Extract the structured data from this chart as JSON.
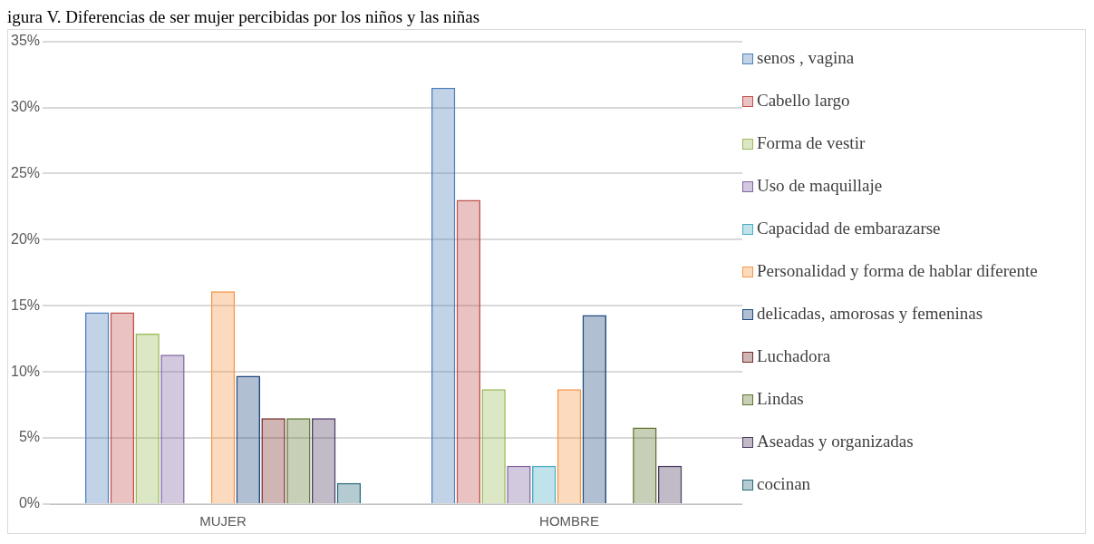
{
  "chart_data": {
    "type": "bar",
    "title": "igura V. Diferencias de ser mujer percibidas por los niños y las niñas",
    "categories": [
      "MUJER",
      "HOMBRE"
    ],
    "series": [
      {
        "name": "senos , vagina",
        "color": "#4f81bd",
        "values": [
          14.5,
          31.5
        ]
      },
      {
        "name": "Cabello largo",
        "color": "#c0504d",
        "values": [
          14.5,
          23
        ]
      },
      {
        "name": "Forma de vestir",
        "color": "#9bbb59",
        "values": [
          12.9,
          8.7
        ]
      },
      {
        "name": "Uso de maquillaje",
        "color": "#8064a2",
        "values": [
          11.3,
          2.9
        ]
      },
      {
        "name": "Capacidad de embarazarse",
        "color": "#4bacc6",
        "values": [
          0,
          2.9
        ]
      },
      {
        "name": "Personalidad y forma de hablar diferente",
        "color": "#f79646",
        "values": [
          16.1,
          8.7
        ]
      },
      {
        "name": "delicadas, amorosas y femeninas",
        "color": "#1f497d",
        "values": [
          9.7,
          14.3
        ]
      },
      {
        "name": "Luchadora",
        "color": "#772c2a",
        "values": [
          6.5,
          0
        ]
      },
      {
        "name": "Lindas",
        "color": "#5f7530",
        "values": [
          6.5,
          5.8
        ]
      },
      {
        "name": "Aseadas y organizadas",
        "color": "#4d3b62",
        "values": [
          6.5,
          2.9
        ]
      },
      {
        "name": "cocinan",
        "color": "#276a7c",
        "values": [
          1.6,
          0
        ]
      }
    ],
    "ylim": [
      0,
      35
    ],
    "yticks": [
      {
        "value": 0,
        "label": "0%"
      },
      {
        "value": 5,
        "label": "5%"
      },
      {
        "value": 10,
        "label": "10%"
      },
      {
        "value": 15,
        "label": "15%"
      },
      {
        "value": 20,
        "label": "20%"
      },
      {
        "value": 25,
        "label": "25%"
      },
      {
        "value": 30,
        "label": "30%"
      },
      {
        "value": 35,
        "label": "35%"
      }
    ],
    "grid": "y",
    "legend": "right"
  }
}
